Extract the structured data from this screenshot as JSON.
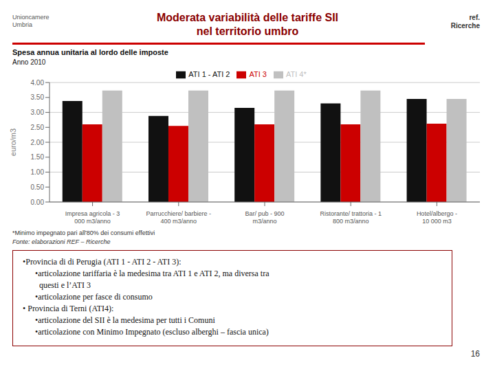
{
  "chart_data": {
    "type": "bar",
    "title": "Spesa annua unitaria al lordo delle imposte",
    "subtitle": "Anno 2010",
    "ylabel": "euro/m3",
    "categories": [
      "Impresa agricola - 3\n000 m3/anno",
      "Parrucchiere/ barbiere -\n400 m3/anno",
      "Bar/ pub - 900\nm3/anno",
      "Ristorante/ trattoria - 1\n800 m3/anno",
      "Hotel/albergo -\n10 000 m3"
    ],
    "series": [
      {
        "name": "ATI 1 - ATI 2",
        "color": "#111111",
        "values": [
          3.38,
          2.88,
          3.15,
          3.3,
          3.45
        ]
      },
      {
        "name": "ATI 3",
        "color": "#cc0000",
        "values": [
          2.6,
          2.55,
          2.6,
          2.6,
          2.62
        ]
      },
      {
        "name": "ATI 4*",
        "color": "#c0c0c0",
        "values": [
          3.73,
          3.73,
          3.73,
          3.73,
          3.45
        ]
      }
    ],
    "ylim": [
      0,
      4.0
    ],
    "yticks": [
      {
        "value": 0.0,
        "label": "0.00"
      },
      {
        "value": 0.5,
        "label": "0.50"
      },
      {
        "value": 1.0,
        "label": "1.00"
      },
      {
        "value": 1.5,
        "label": "1.50"
      },
      {
        "value": 2.0,
        "label": "2.00"
      },
      {
        "value": 2.5,
        "label": "2.50"
      },
      {
        "value": 3.0,
        "label": "3.00"
      },
      {
        "value": 3.5,
        "label": "3.50"
      },
      {
        "value": 4.0,
        "label": "4.00"
      }
    ],
    "grid": true,
    "legend": "top",
    "annotations": [
      "Unioncamere\nUmbria",
      "Moderata variabilità delle tariffe SII\nnel territorio umbro",
      "ref.\nRicerche",
      "*Minimo impegnato pari all'80% dei consumi effettivi",
      "Fonte: elaborazioni REF – Ricerche",
      "•Provincia di di Perugia (ATI 1 - ATI 2 - ATI 3):\n      •articolazione tariffaria è la medesima tra ATI 1 e ATI 2, ma diversa tra\n        questi e l’ATI 3\n      •articolazione per fasce di consumo\n• Provincia di Terni (ATI4):\n      •articolazione del SII è la medesima per tutti i Comuni\n      •articolazione con Minimo Impegnato (escluso alberghi – fascia unica)",
      "16"
    ]
  }
}
